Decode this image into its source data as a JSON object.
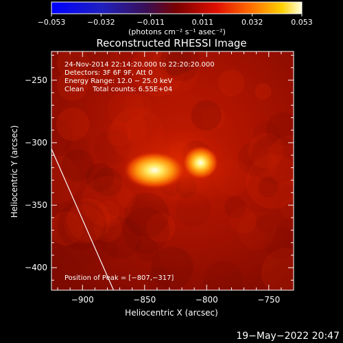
{
  "chart_data": {
    "type": "heatmap",
    "title": "Reconstructed RHESSI Image",
    "xlabel": "Heliocentric X (arcsec)",
    "ylabel": "Heliocentric Y (arcsec)",
    "xlim": [
      -925,
      -730
    ],
    "ylim": [
      -418,
      -227
    ],
    "x_ticks": [
      {
        "value": -900,
        "label": "−900"
      },
      {
        "value": -850,
        "label": "−850"
      },
      {
        "value": -800,
        "label": "−800"
      },
      {
        "value": -750,
        "label": "−750"
      }
    ],
    "y_ticks": [
      {
        "value": -250,
        "label": "−250"
      },
      {
        "value": -300,
        "label": "−300"
      },
      {
        "value": -350,
        "label": "−350"
      },
      {
        "value": -400,
        "label": "−400"
      }
    ],
    "colorbar": {
      "range": [
        -0.053,
        0.053
      ],
      "tick_values": [
        -0.053,
        -0.032,
        -0.011,
        0.011,
        0.032,
        0.053
      ],
      "tick_labels": [
        "−0.053",
        "−0.032",
        "−0.011",
        "0.011",
        "0.032",
        "0.053"
      ],
      "units_label": "(photons cm⁻² s⁻¹ asec⁻²)",
      "colormap": "hot"
    },
    "info_lines": [
      "24-Nov-2014 22:14:20.000 to 22:20:20.000",
      "Detectors: 3F 6F 9F, Att 0",
      "Energy Range: 12.0 − 25.0 keV",
      "Clean    Total counts: 6.55E+04"
    ],
    "peak_label": "Position of Peak = [−807,−317]",
    "sources": [
      {
        "name": "left-source",
        "x": -842,
        "y": -322
      },
      {
        "name": "right-source",
        "x": -805,
        "y": -316
      }
    ],
    "limb_line": {
      "points": [
        [
          -925,
          -305
        ],
        [
          -875,
          -418
        ]
      ]
    },
    "grid": false
  },
  "footer": {
    "timestamp": "19−May−2022 20:47"
  }
}
